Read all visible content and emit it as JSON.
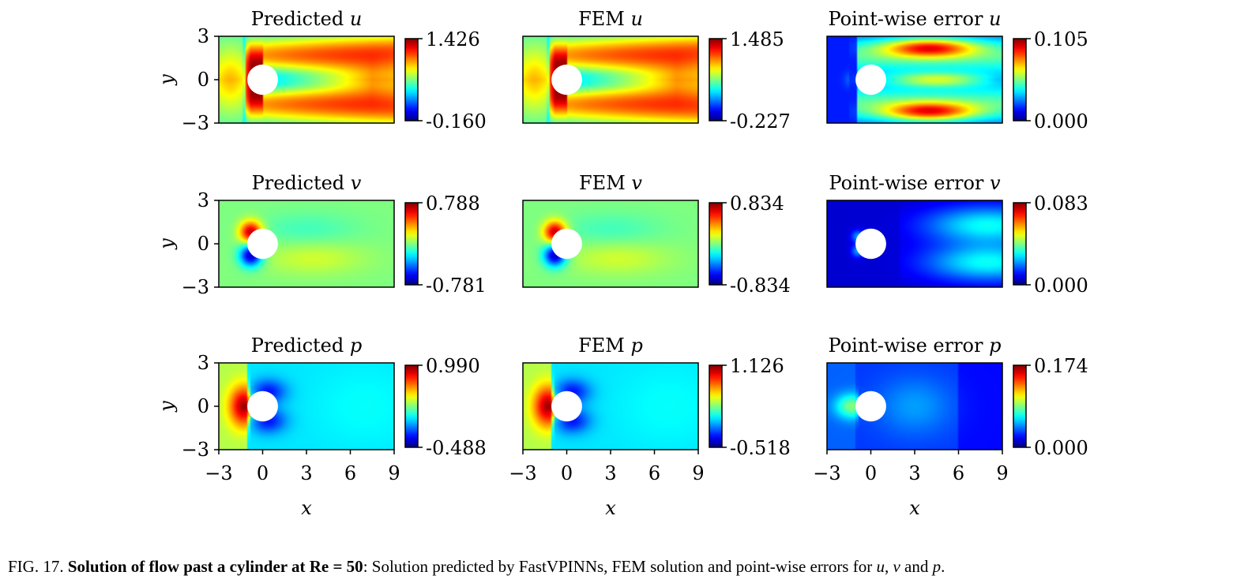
{
  "figure": {
    "panels": [
      {
        "row": 0,
        "col": 0,
        "title": "Predicted",
        "var": "u",
        "cmax": "1.426",
        "cmin": "-0.160",
        "field": "u_pred"
      },
      {
        "row": 0,
        "col": 1,
        "title": "FEM",
        "var": "u",
        "cmax": "1.485",
        "cmin": "-0.227",
        "field": "u_fem"
      },
      {
        "row": 0,
        "col": 2,
        "title": "Point-wise error",
        "var": "u",
        "cmax": "0.105",
        "cmin": "0.000",
        "field": "u_err"
      },
      {
        "row": 1,
        "col": 0,
        "title": "Predicted",
        "var": "v",
        "cmax": "0.788",
        "cmin": "-0.781",
        "field": "v_pred"
      },
      {
        "row": 1,
        "col": 1,
        "title": "FEM",
        "var": "v",
        "cmax": "0.834",
        "cmin": "-0.834",
        "field": "v_fem"
      },
      {
        "row": 1,
        "col": 2,
        "title": "Point-wise error",
        "var": "v",
        "cmax": "0.083",
        "cmin": "0.000",
        "field": "v_err"
      },
      {
        "row": 2,
        "col": 0,
        "title": "Predicted",
        "var": "p",
        "cmax": "0.990",
        "cmin": "-0.488",
        "field": "p_pred"
      },
      {
        "row": 2,
        "col": 1,
        "title": "FEM",
        "var": "p",
        "cmax": "1.126",
        "cmin": "-0.518",
        "field": "p_fem"
      },
      {
        "row": 2,
        "col": 2,
        "title": "Point-wise error",
        "var": "p",
        "cmax": "0.174",
        "cmin": "0.000",
        "field": "p_err"
      }
    ],
    "y_label": "y",
    "x_label": "x",
    "y_ticks": [
      "3",
      "0",
      "−3"
    ],
    "x_ticks": [
      "−3",
      "0",
      "3",
      "6",
      "9"
    ],
    "colormap": "jet"
  },
  "caption": {
    "prefix": "FIG. 17. ",
    "bold": "Solution of flow past a cylinder at Re = 50",
    "rest": ": Solution predicted by FastVPINNs, FEM solution and point-wise errors for ",
    "u": "u",
    "sep1": ", ",
    "v": "v",
    "sep2": " and ",
    "p": "p",
    "end": "."
  }
}
